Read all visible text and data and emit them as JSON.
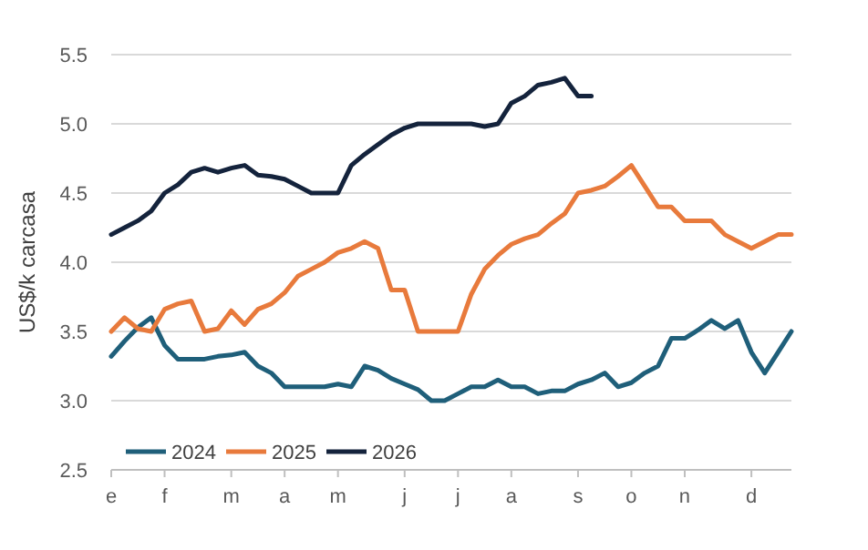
{
  "chart_data": {
    "type": "line",
    "ylabel": "US$/k carcasa",
    "ylim": [
      2.5,
      5.5
    ],
    "categories": [
      "e",
      null,
      null,
      null,
      "f",
      null,
      null,
      null,
      null,
      "m",
      null,
      null,
      null,
      "a",
      null,
      null,
      null,
      "m",
      null,
      null,
      null,
      null,
      "j",
      null,
      null,
      null,
      "j",
      null,
      null,
      null,
      "a",
      null,
      null,
      null,
      null,
      "s",
      null,
      null,
      null,
      "o",
      null,
      null,
      null,
      "n",
      null,
      null,
      null,
      null,
      "d",
      null,
      null,
      null
    ],
    "yticks": [
      {
        "value": 2.5,
        "label": "2.5"
      },
      {
        "value": 3,
        "label": "3.0"
      },
      {
        "value": 3.5,
        "label": "3.5"
      },
      {
        "value": 4,
        "label": "4.0"
      },
      {
        "value": 4.5,
        "label": "4.5"
      },
      {
        "value": 5,
        "label": "5.0"
      },
      {
        "value": 5.5,
        "label": "5.5"
      }
    ],
    "grid": "y",
    "legend": "bottom left",
    "marker": "none",
    "line_style": "solid",
    "series": [
      {
        "name": "2024",
        "color": "#1f5f7a",
        "values": [
          3.32,
          3.43,
          3.53,
          3.6,
          3.4,
          3.3,
          3.3,
          3.3,
          3.32,
          3.33,
          3.35,
          3.25,
          3.2,
          3.1,
          3.1,
          3.1,
          3.1,
          3.12,
          3.1,
          3.25,
          3.22,
          3.16,
          3.12,
          3.08,
          3.0,
          3.0,
          3.05,
          3.1,
          3.1,
          3.15,
          3.1,
          3.1,
          3.05,
          3.07,
          3.07,
          3.12,
          3.15,
          3.2,
          3.1,
          3.13,
          3.2,
          3.25,
          3.45,
          3.45,
          3.51,
          3.58,
          3.52,
          3.58,
          3.35,
          3.2,
          3.35,
          3.5
        ]
      },
      {
        "name": "2025",
        "color": "#e87a3c",
        "values": [
          3.5,
          3.6,
          3.52,
          3.5,
          3.66,
          3.7,
          3.72,
          3.5,
          3.52,
          3.65,
          3.55,
          3.66,
          3.7,
          3.78,
          3.9,
          3.95,
          4.0,
          4.07,
          4.1,
          4.15,
          4.1,
          3.8,
          3.8,
          3.5,
          3.5,
          3.5,
          3.5,
          3.77,
          3.95,
          4.05,
          4.13,
          4.17,
          4.2,
          4.28,
          4.35,
          4.5,
          4.52,
          4.55,
          4.62,
          4.7,
          4.55,
          4.4,
          4.4,
          4.3,
          4.3,
          4.3,
          4.2,
          4.15,
          4.1,
          4.15,
          4.2,
          4.2
        ]
      },
      {
        "name": "2026",
        "color": "#14233c",
        "values": [
          4.2,
          4.25,
          4.3,
          4.37,
          4.5,
          4.56,
          4.65,
          4.68,
          4.65,
          4.68,
          4.7,
          4.63,
          4.62,
          4.6,
          4.55,
          4.5,
          4.5,
          4.5,
          4.7,
          4.78,
          4.85,
          4.92,
          4.97,
          5.0,
          5.0,
          5.0,
          5.0,
          5.0,
          4.98,
          5.0,
          5.15,
          5.2,
          5.28,
          5.3,
          5.33,
          5.2,
          5.2,
          null,
          null,
          null,
          null,
          null,
          null,
          null,
          null,
          null,
          null,
          null,
          null,
          null,
          null,
          null
        ]
      }
    ]
  }
}
